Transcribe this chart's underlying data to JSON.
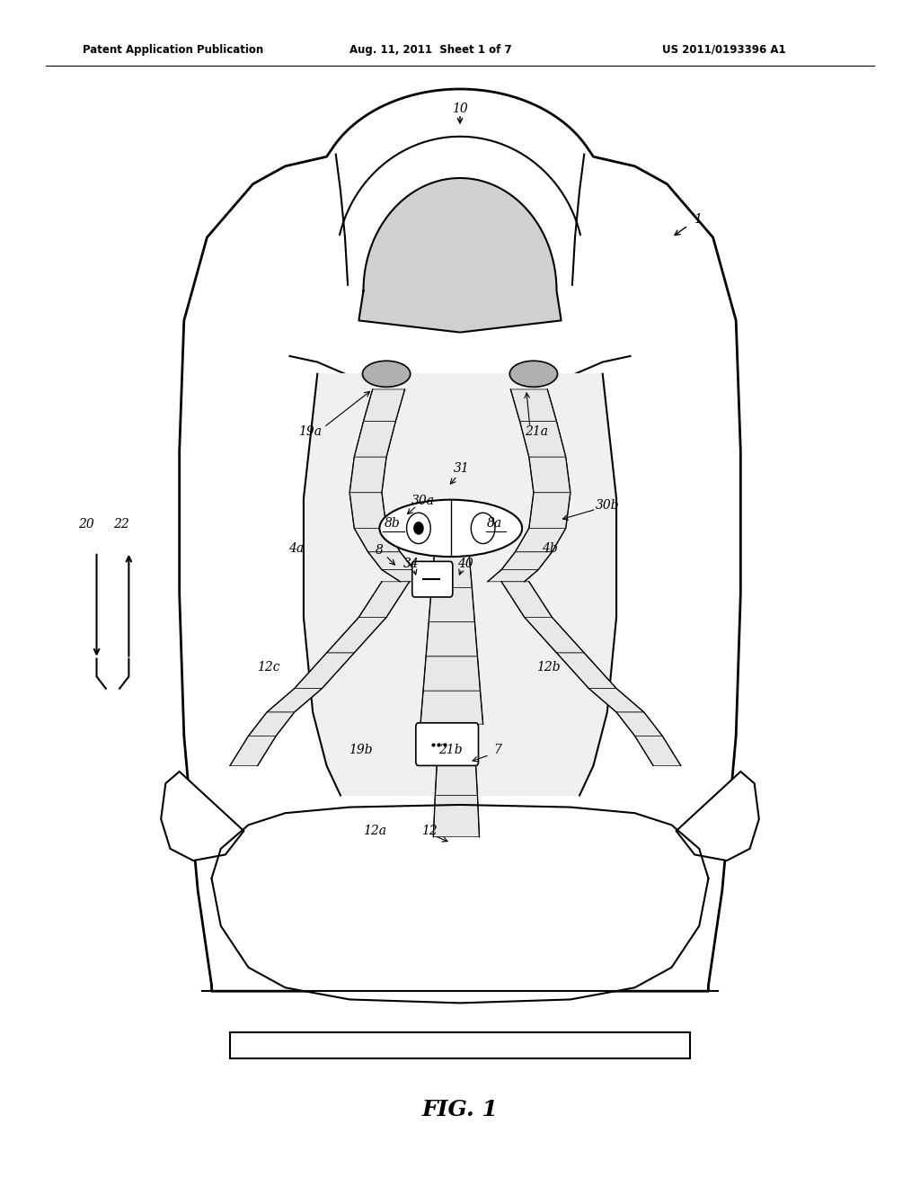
{
  "header_left": "Patent Application Publication",
  "header_mid": "Aug. 11, 2011  Sheet 1 of 7",
  "header_right": "US 2011/0193396 A1",
  "figure_label": "FIG. 1",
  "background_color": "#ffffff",
  "line_color": "#000000"
}
